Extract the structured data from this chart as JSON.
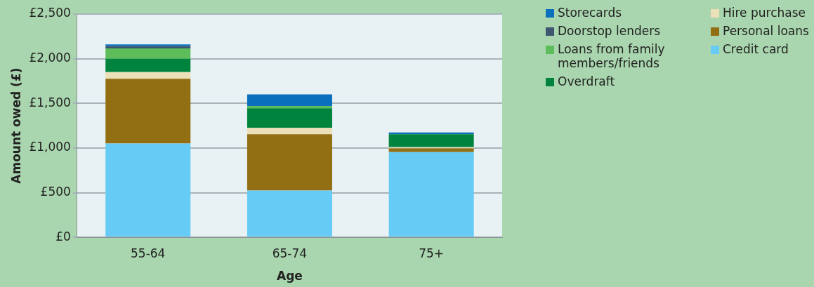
{
  "chart_data": {
    "type": "bar",
    "stacked": true,
    "xlabel": "Age",
    "ylabel": "Amount owed (£)",
    "categories": [
      "55-64",
      "65-74",
      "75+"
    ],
    "ylim": [
      0,
      2500
    ],
    "yticks": [
      {
        "value": 0,
        "label": "£0"
      },
      {
        "value": 500,
        "label": "£500"
      },
      {
        "value": 1000,
        "label": "£1,000"
      },
      {
        "value": 1500,
        "label": "£1,500"
      },
      {
        "value": 2000,
        "label": "£2,000"
      },
      {
        "value": 2500,
        "label": "£2,500"
      }
    ],
    "grid": "y",
    "legend": "right",
    "series": [
      {
        "name": "Credit card",
        "color": "#66ccf5",
        "values": [
          1050,
          525,
          955
        ]
      },
      {
        "name": "Personal loans",
        "color": "#936f14",
        "values": [
          725,
          630,
          40
        ]
      },
      {
        "name": "Hire purchase",
        "color": "#ebe0b8",
        "values": [
          75,
          70,
          15
        ]
      },
      {
        "name": "Overdraft",
        "color": "#00843d",
        "values": [
          150,
          220,
          145
        ]
      },
      {
        "name": "Loans from family members/friends",
        "color": "#5cbd5a",
        "values": [
          115,
          25,
          0
        ]
      },
      {
        "name": "Doorstop lenders",
        "color": "#3f5672",
        "values": [
          25,
          0,
          0
        ]
      },
      {
        "name": "Storecards",
        "color": "#0a70bd",
        "values": [
          20,
          130,
          20
        ]
      }
    ]
  }
}
